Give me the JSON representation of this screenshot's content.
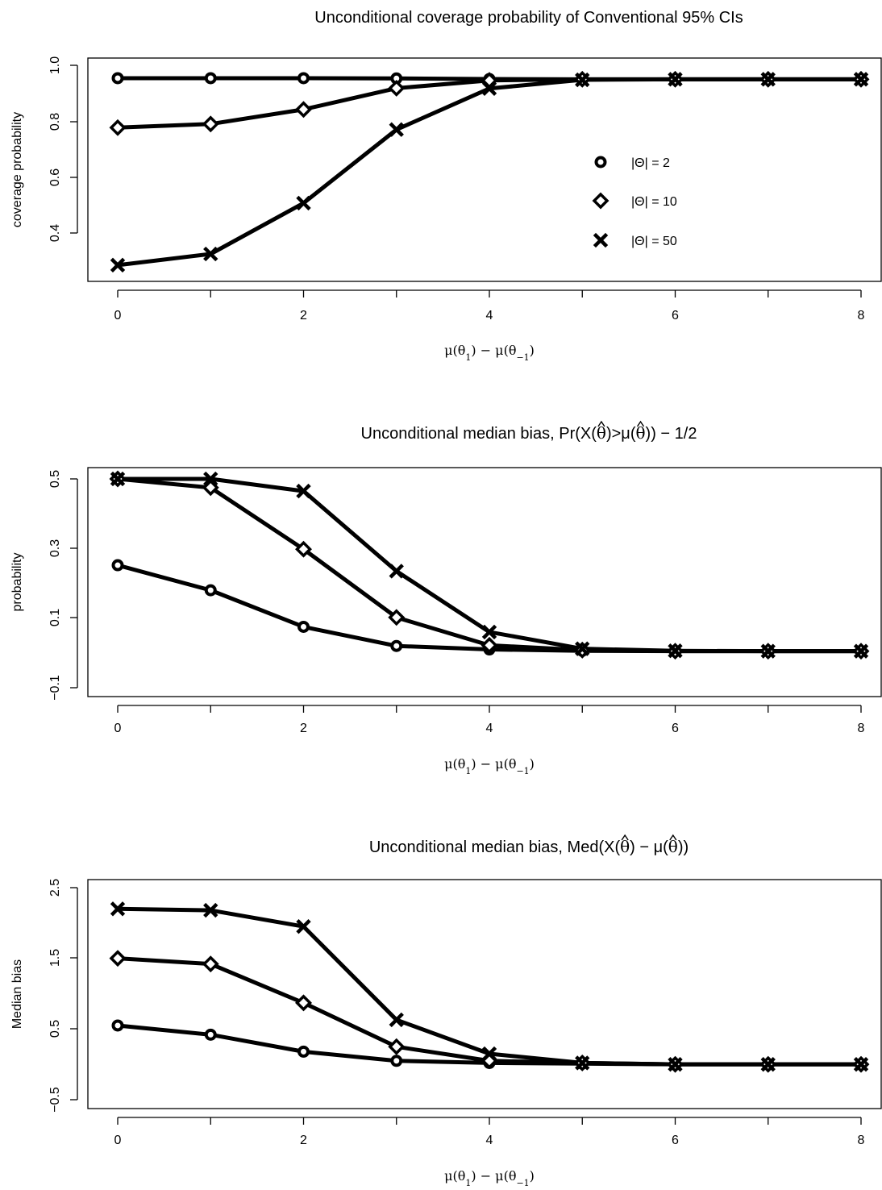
{
  "chart_data": [
    {
      "type": "line",
      "title": "Unconditional coverage probability of Conventional 95% CIs",
      "xlabel": "μ(θ₁) − μ(θ₋₁)",
      "ylabel": "coverage probability",
      "x": [
        0,
        1,
        2,
        3,
        4,
        5,
        6,
        7,
        8
      ],
      "xticks": [
        "0",
        "2",
        "4",
        "6",
        "8"
      ],
      "yticks": [
        "0.4",
        "0.6",
        "0.8",
        "1.0"
      ],
      "xlim": [
        0,
        8
      ],
      "ylim": [
        0.28,
        0.96
      ],
      "legend": {
        "position": "right-center",
        "entries": [
          {
            "label": "|Θ| = 2",
            "marker": "circle"
          },
          {
            "label": "|Θ| = 10",
            "marker": "diamond"
          },
          {
            "label": "|Θ| = 50",
            "marker": "cross"
          }
        ]
      },
      "series": [
        {
          "name": "|Θ| = 2",
          "marker": "circle",
          "values": [
            0.954,
            0.954,
            0.954,
            0.953,
            0.951,
            0.95,
            0.95,
            0.95,
            0.95
          ]
        },
        {
          "name": "|Θ| = 10",
          "marker": "diamond",
          "values": [
            0.777,
            0.79,
            0.842,
            0.918,
            0.946,
            0.95,
            0.95,
            0.95,
            0.95
          ]
        },
        {
          "name": "|Θ| = 50",
          "marker": "cross",
          "values": [
            0.285,
            0.325,
            0.507,
            0.77,
            0.917,
            0.948,
            0.95,
            0.95,
            0.95
          ]
        }
      ]
    },
    {
      "type": "line",
      "title_parts": [
        "Unconditional median bias, Pr(X(",
        "θ",
        ")>μ(",
        "θ",
        ")) − 1/2"
      ],
      "xlabel": "μ(θ₁) − μ(θ₋₁)",
      "ylabel": "probability",
      "x": [
        0,
        1,
        2,
        3,
        4,
        5,
        6,
        7,
        8
      ],
      "xticks": [
        "0",
        "2",
        "4",
        "6",
        "8"
      ],
      "yticks": [
        "−0.1",
        "0.1",
        "0.3",
        "0.5"
      ],
      "xlim": [
        0,
        8
      ],
      "ylim": [
        0.005,
        0.5
      ],
      "series": [
        {
          "name": "|Θ| = 2",
          "marker": "circle",
          "values": [
            0.252,
            0.18,
            0.075,
            0.02,
            0.01,
            0.006,
            0.005,
            0.005,
            0.005
          ]
        },
        {
          "name": "|Θ| = 10",
          "marker": "diamond",
          "values": [
            0.5,
            0.475,
            0.298,
            0.102,
            0.022,
            0.008,
            0.005,
            0.005,
            0.005
          ]
        },
        {
          "name": "|Θ| = 50",
          "marker": "cross",
          "values": [
            0.5,
            0.5,
            0.465,
            0.235,
            0.06,
            0.012,
            0.006,
            0.005,
            0.005
          ]
        }
      ]
    },
    {
      "type": "line",
      "title_parts": [
        "Unconditional median bias, Med(X(",
        "θ",
        ") − μ(",
        "θ",
        "))"
      ],
      "xlabel": "μ(θ₁) − μ(θ₋₁)",
      "ylabel": "Median bias",
      "x": [
        0,
        1,
        2,
        3,
        4,
        5,
        6,
        7,
        8
      ],
      "xticks": [
        "0",
        "2",
        "4",
        "6",
        "8"
      ],
      "yticks": [
        "−0.5",
        "0.5",
        "1.5",
        "2.5"
      ],
      "xlim": [
        0,
        8
      ],
      "ylim": [
        0.0,
        2.2
      ],
      "series": [
        {
          "name": "|Θ| = 2",
          "marker": "circle",
          "values": [
            0.55,
            0.42,
            0.18,
            0.05,
            0.02,
            0.01,
            0.0,
            0.0,
            0.0
          ]
        },
        {
          "name": "|Θ| = 10",
          "marker": "diamond",
          "values": [
            1.5,
            1.42,
            0.87,
            0.25,
            0.05,
            0.02,
            0.0,
            0.0,
            0.0
          ]
        },
        {
          "name": "|Θ| = 50",
          "marker": "cross",
          "values": [
            2.2,
            2.18,
            1.95,
            0.63,
            0.15,
            0.02,
            0.0,
            0.0,
            0.0
          ]
        }
      ]
    }
  ]
}
